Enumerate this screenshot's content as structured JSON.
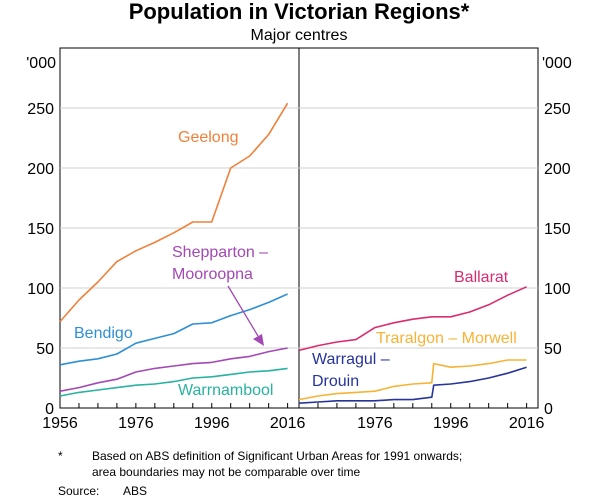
{
  "chart_data": [
    {
      "type": "line",
      "panel": "left",
      "title": "Population in Victorian Regions*",
      "subtitle": "Major centres",
      "ylabel": "'000",
      "ylim": [
        0,
        300
      ],
      "xlim": [
        1956,
        2019
      ],
      "yticks": [
        0,
        50,
        100,
        150,
        200,
        250
      ],
      "xticks": [
        1956,
        1976,
        1996,
        2016
      ],
      "series": [
        {
          "name": "Geelong",
          "color": "#f0803a",
          "x": [
            1956,
            1961,
            1966,
            1971,
            1976,
            1981,
            1986,
            1991,
            1996,
            2001,
            2006,
            2011,
            2016
          ],
          "values": [
            72,
            90,
            105,
            122,
            131,
            138,
            146,
            155,
            155,
            200,
            210,
            228,
            254
          ]
        },
        {
          "name": "Bendigo",
          "color": "#2e8fd6",
          "x": [
            1956,
            1961,
            1966,
            1971,
            1976,
            1981,
            1986,
            1991,
            1996,
            2001,
            2006,
            2011,
            2016
          ],
          "values": [
            36,
            39,
            41,
            45,
            54,
            58,
            62,
            70,
            71,
            77,
            82,
            88,
            95
          ]
        },
        {
          "name": "Shepparton – Mooroopna",
          "color": "#a348b4",
          "x": [
            1956,
            1961,
            1966,
            1971,
            1976,
            1981,
            1986,
            1991,
            1996,
            2001,
            2006,
            2011,
            2016
          ],
          "values": [
            14,
            17,
            21,
            24,
            30,
            33,
            35,
            37,
            38,
            41,
            43,
            47,
            50
          ]
        },
        {
          "name": "Warrnambool",
          "color": "#28b2a0",
          "x": [
            1956,
            1961,
            1966,
            1971,
            1976,
            1981,
            1986,
            1991,
            1996,
            2001,
            2006,
            2011,
            2016
          ],
          "values": [
            10,
            13,
            15,
            17,
            19,
            20,
            22,
            25,
            26,
            28,
            30,
            31,
            33
          ]
        }
      ]
    },
    {
      "type": "line",
      "panel": "right",
      "ylabel": "'000",
      "ylim": [
        0,
        300
      ],
      "xlim": [
        1956,
        2019
      ],
      "yticks": [
        0,
        50,
        100,
        150,
        200,
        250
      ],
      "xticks": [
        1976,
        1996,
        2016
      ],
      "series": [
        {
          "name": "Ballarat",
          "color": "#dc2b6e",
          "x": [
            1956,
            1961,
            1966,
            1971,
            1976,
            1981,
            1986,
            1991,
            1996,
            2001,
            2006,
            2011,
            2016
          ],
          "values": [
            48,
            52,
            55,
            57,
            67,
            71,
            74,
            76,
            76,
            80,
            86,
            94,
            101
          ]
        },
        {
          "name": "Traralgon – Morwell",
          "color": "#f7b335",
          "x": [
            1956,
            1961,
            1966,
            1971,
            1976,
            1981,
            1986,
            1991,
            1991.5,
            1996,
            2001,
            2006,
            2011,
            2016
          ],
          "values": [
            7,
            10,
            12,
            13,
            14,
            18,
            20,
            21,
            37,
            34,
            35,
            37,
            40,
            40
          ]
        },
        {
          "name": "Warragul – Drouin",
          "color": "#26349c",
          "x": [
            1956,
            1961,
            1966,
            1971,
            1976,
            1981,
            1986,
            1991,
            1991.5,
            1996,
            2001,
            2006,
            2011,
            2016
          ],
          "values": [
            4,
            5,
            6,
            6,
            6,
            7,
            7,
            9,
            19,
            20,
            22,
            25,
            29,
            34
          ]
        }
      ]
    }
  ],
  "labels": {
    "geelong": "Geelong",
    "bendigo": "Bendigo",
    "shepparton_line1": "Shepparton –",
    "shepparton_line2": "Mooroopna",
    "warrnambool": "Warrnambool",
    "ballarat": "Ballarat",
    "traralgon": "Traralgon – Morwell",
    "warragul_line1": "Warragul –",
    "warragul_line2": "Drouin"
  },
  "footnote": {
    "star": "*",
    "line1": "Based on ABS definition of Significant Urban Areas for 1991 onwards;",
    "line2": "area boundaries may not be comparable over time",
    "source_label": "Source:",
    "source_value": "ABS"
  }
}
